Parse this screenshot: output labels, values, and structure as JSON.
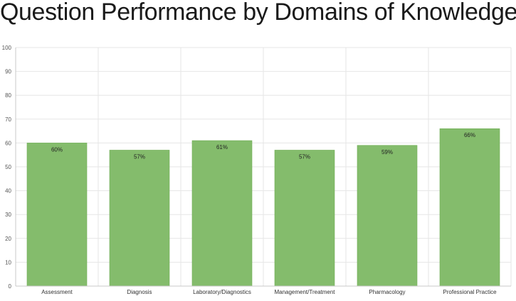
{
  "chart_data": {
    "type": "bar",
    "title": "Question Performance by Domains of Knowledge",
    "categories": [
      "Assessment",
      "Diagnosis",
      "Laboratory/Diagnostics",
      "Management/Treatment",
      "Pharmacology",
      "Professional Practice"
    ],
    "values": [
      60,
      57,
      61,
      57,
      59,
      66
    ],
    "data_labels": [
      "60%",
      "57%",
      "61%",
      "57%",
      "59%",
      "66%"
    ],
    "y_ticks": [
      0,
      10,
      20,
      30,
      40,
      50,
      60,
      70,
      80,
      90,
      100
    ],
    "ylim": [
      0,
      100
    ],
    "grid": true,
    "legend": "none",
    "bar_color": "#84bc6c",
    "bar_stroke_color": "#6fae55",
    "grid_color": "#e6e6e6",
    "axis_color": "#c8c8c8"
  }
}
